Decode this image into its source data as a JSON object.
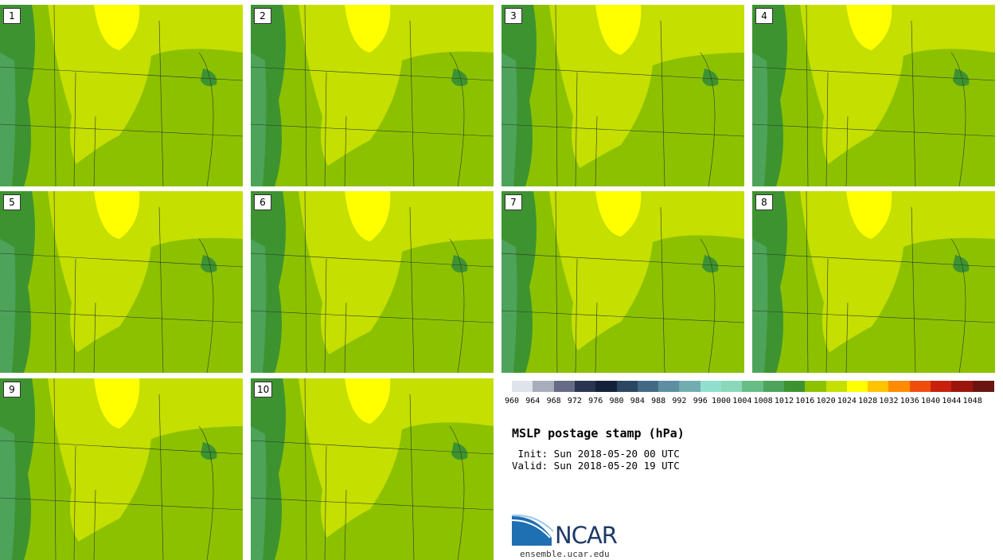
{
  "panels": [
    {
      "label": "1"
    },
    {
      "label": "2"
    },
    {
      "label": "3"
    },
    {
      "label": "4"
    },
    {
      "label": "5"
    },
    {
      "label": "6"
    },
    {
      "label": "7"
    },
    {
      "label": "8"
    },
    {
      "label": "9"
    },
    {
      "label": "10"
    }
  ],
  "colorbar": {
    "colors": [
      "#dfe3ea",
      "#a7adbb",
      "#666c85",
      "#2a3451",
      "#14213a",
      "#2b4661",
      "#426a86",
      "#5e8ea2",
      "#71adb0",
      "#90dfcf",
      "#8ad7ba",
      "#67bd84",
      "#4ea35a",
      "#3e9331",
      "#8cc100",
      "#c4df00",
      "#ffff00",
      "#ffc400",
      "#ff8c00",
      "#f04d0c",
      "#c8200c",
      "#9a150c",
      "#6a1510"
    ],
    "ticks": [
      "960",
      "964",
      "968",
      "972",
      "976",
      "980",
      "984",
      "988",
      "992",
      "996",
      "1000",
      "1004",
      "1008",
      "1012",
      "1016",
      "1020",
      "1024",
      "1028",
      "1032",
      "1036",
      "1040",
      "1044",
      "1048"
    ]
  },
  "title": "MSLP postage stamp (hPa)",
  "init_line": " Init: Sun 2018-05-20 00 UTC",
  "valid_line": "Valid: Sun 2018-05-20 19 UTC",
  "logo": {
    "name": "NCAR",
    "url": "ensemble.ucar.edu"
  }
}
